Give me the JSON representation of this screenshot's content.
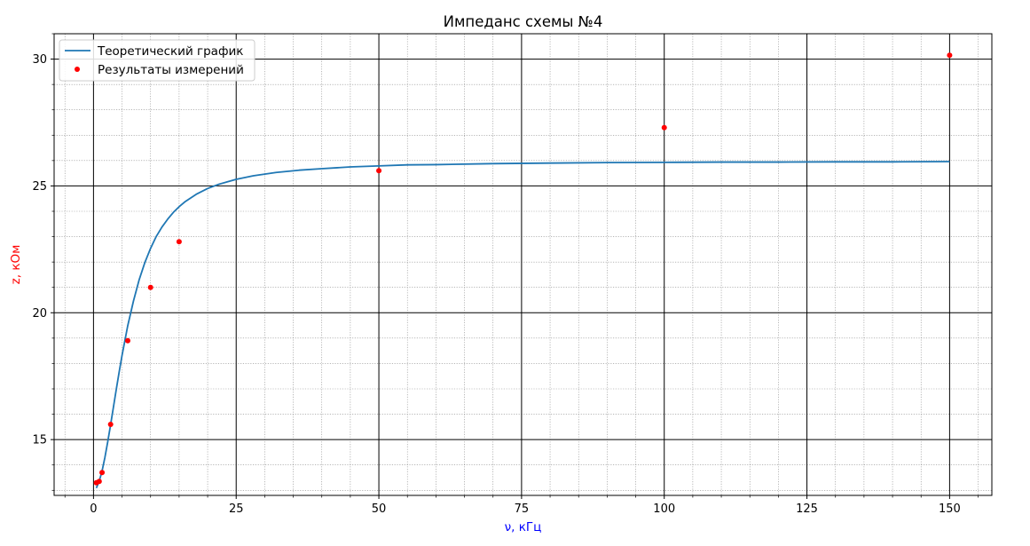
{
  "chart_data": {
    "type": "line",
    "title": "Импеданс схемы №4",
    "xlabel": "ν, кГц",
    "ylabel": "z, кОм",
    "xlim": [
      -6.9,
      157.4
    ],
    "ylim": [
      12.8,
      31.0
    ],
    "x_ticks": [
      0,
      25,
      50,
      75,
      100,
      125,
      150
    ],
    "y_ticks": [
      15,
      20,
      25,
      30
    ],
    "x_minor_step": 5,
    "y_minor_step": 1,
    "grid": true,
    "legend_position": "upper-left",
    "colors": {
      "theory_line": "#1f77b4",
      "measured_points": "#ff0000",
      "xlabel": "#0000ff",
      "ylabel": "#ff0000",
      "major_grid": "#000000",
      "minor_grid": "#8c8c8c"
    },
    "series": [
      {
        "name": "Теоретический график",
        "kind": "line",
        "x": [
          0.5,
          1,
          1.5,
          2,
          2.5,
          3,
          3.5,
          4,
          4.5,
          5,
          6,
          7,
          8,
          9,
          10,
          11,
          12,
          13,
          14,
          15,
          16,
          18,
          20,
          22,
          25,
          28,
          32,
          36,
          40,
          45,
          50,
          55,
          60,
          70,
          80,
          90,
          100,
          110,
          120,
          130,
          140,
          150
        ],
        "y": [
          13.09,
          13.36,
          13.76,
          14.3,
          14.92,
          15.59,
          16.29,
          16.99,
          17.67,
          18.32,
          19.49,
          20.46,
          21.3,
          21.98,
          22.54,
          23.01,
          23.38,
          23.69,
          23.96,
          24.18,
          24.37,
          24.67,
          24.9,
          25.07,
          25.26,
          25.4,
          25.53,
          25.62,
          25.68,
          25.75,
          25.79,
          25.83,
          25.84,
          25.88,
          25.9,
          25.92,
          25.93,
          25.94,
          25.94,
          25.95,
          25.95,
          25.96
        ]
      },
      {
        "name": "Результаты измерений",
        "kind": "scatter",
        "x": [
          0.5,
          1,
          1.5,
          3,
          6,
          10,
          15,
          50,
          100,
          150
        ],
        "y": [
          13.3,
          13.35,
          13.7,
          15.6,
          18.9,
          21.0,
          22.8,
          25.6,
          27.3,
          30.15
        ]
      }
    ]
  }
}
